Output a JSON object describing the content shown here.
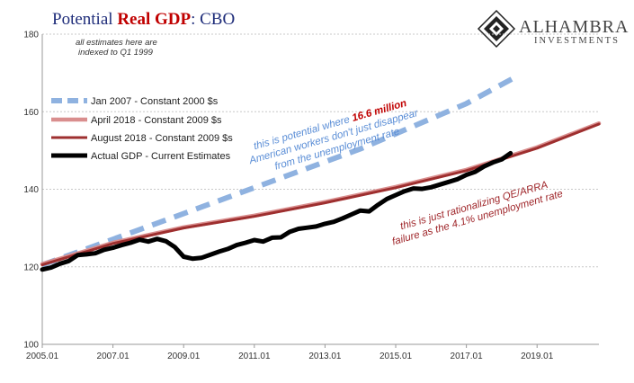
{
  "title": {
    "part1": "Potential ",
    "part2": "Real GDP",
    "part3": ":  CBO"
  },
  "logo": {
    "name": "ALHAMBRA",
    "sub": "INVESTMENTS"
  },
  "note": {
    "line1": "all estimates here are",
    "line2": "indexed to Q1 1999"
  },
  "annotations": {
    "blue_line1_pre": "this is potential where ",
    "blue_line1_strong": "16.6 million",
    "blue_line2": "American workers don't just disappear",
    "blue_line3": "from the unemployment rate",
    "red_line1": "this is just rationalizing  QE/ARRA",
    "red_line2": "failure as the 4.1% unemployment rate"
  },
  "chart_data": {
    "type": "line",
    "title": "Potential Real GDP:  CBO",
    "xlim": [
      2005.0,
      2020.75
    ],
    "ylim": [
      100,
      180
    ],
    "y_ticks": [
      100,
      120,
      140,
      160,
      180
    ],
    "x_ticks": [
      {
        "value": 2005.0,
        "label": "2005.01"
      },
      {
        "value": 2007.0,
        "label": "2007.01"
      },
      {
        "value": 2009.0,
        "label": "2009.01"
      },
      {
        "value": 2011.0,
        "label": "2011.01"
      },
      {
        "value": 2013.0,
        "label": "2013.01"
      },
      {
        "value": 2015.0,
        "label": "2015.01"
      },
      {
        "value": 2017.0,
        "label": "2017.01"
      },
      {
        "value": 2019.0,
        "label": "2019.01"
      }
    ],
    "grid": "horizontal",
    "legend_position": "top-left",
    "series": [
      {
        "name": "Jan 2007 - Constant 2000 $s",
        "color": "#8fb2e0",
        "style": "dashed",
        "x": [
          2005.0,
          2008.0,
          2011.0,
          2014.0,
          2017.0,
          2018.5
        ],
        "y": [
          120.5,
          130.4,
          140.4,
          150.4,
          162.1,
          169.5
        ]
      },
      {
        "name": "April 2018 - Constant 2009 $s",
        "color": "#d98e8e",
        "style": "solid",
        "x": [
          2005.0,
          2007.0,
          2009.0,
          2011.0,
          2013.0,
          2015.0,
          2017.0,
          2019.0,
          2020.75
        ],
        "y": [
          120.7,
          126.2,
          130.2,
          133.2,
          136.7,
          140.6,
          145.0,
          150.8,
          157.0
        ]
      },
      {
        "name": "August 2018 - Constant 2009 $s",
        "color": "#9e2f2f",
        "style": "solid",
        "x": [
          2005.0,
          2007.0,
          2009.0,
          2011.0,
          2013.0,
          2015.0,
          2017.0,
          2019.0,
          2020.75
        ],
        "y": [
          120.5,
          126.0,
          130.0,
          133.0,
          136.5,
          140.4,
          144.8,
          150.6,
          156.8
        ]
      },
      {
        "name": "Actual GDP - Current Estimates",
        "color": "#000000",
        "style": "solid",
        "x": [
          2005.0,
          2005.25,
          2005.5,
          2005.75,
          2006.0,
          2006.25,
          2006.5,
          2006.75,
          2007.0,
          2007.25,
          2007.5,
          2007.75,
          2008.0,
          2008.25,
          2008.5,
          2008.75,
          2009.0,
          2009.25,
          2009.5,
          2009.75,
          2010.0,
          2010.25,
          2010.5,
          2010.75,
          2011.0,
          2011.25,
          2011.5,
          2011.75,
          2012.0,
          2012.25,
          2012.5,
          2012.75,
          2013.0,
          2013.25,
          2013.5,
          2013.75,
          2014.0,
          2014.25,
          2014.5,
          2014.75,
          2015.0,
          2015.25,
          2015.5,
          2015.75,
          2016.0,
          2016.25,
          2016.5,
          2016.75,
          2017.0,
          2017.25,
          2017.5,
          2017.75,
          2018.0,
          2018.25
        ],
        "y": [
          119.3,
          119.8,
          120.8,
          121.5,
          123.0,
          123.2,
          123.5,
          124.4,
          124.9,
          125.6,
          126.2,
          127.0,
          126.5,
          127.2,
          126.6,
          125.1,
          122.6,
          122.1,
          122.3,
          123.1,
          123.9,
          124.6,
          125.6,
          126.2,
          126.9,
          126.5,
          127.5,
          127.6,
          129.0,
          129.8,
          130.1,
          130.4,
          131.1,
          131.6,
          132.5,
          133.5,
          134.5,
          134.3,
          136.0,
          137.5,
          138.5,
          139.5,
          140.2,
          140.1,
          140.5,
          141.2,
          141.9,
          142.6,
          143.7,
          144.5,
          145.9,
          146.9,
          147.7,
          149.3
        ]
      }
    ]
  }
}
